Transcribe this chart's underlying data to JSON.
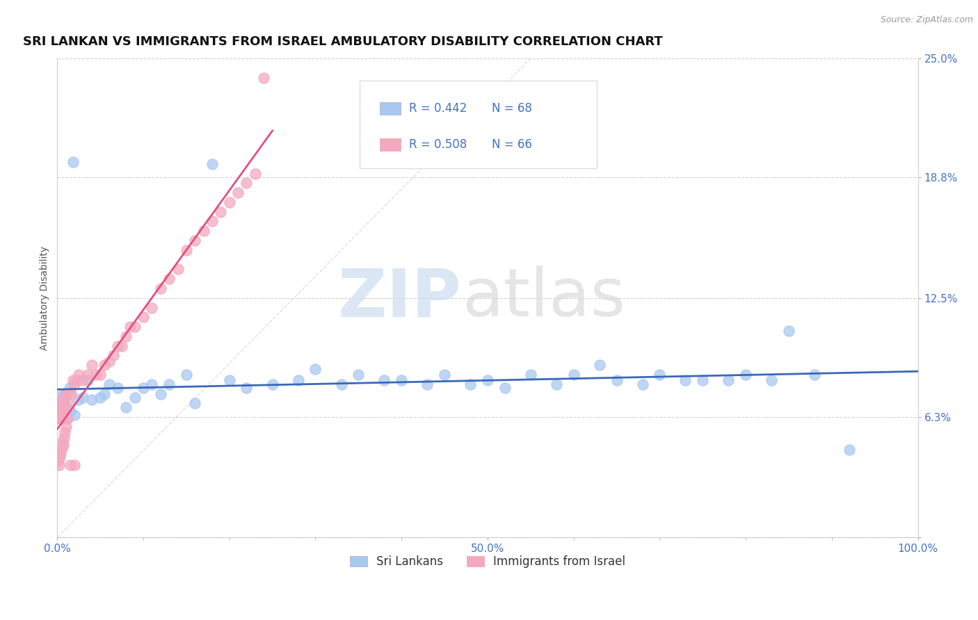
{
  "title": "SRI LANKAN VS IMMIGRANTS FROM ISRAEL AMBULATORY DISABILITY CORRELATION CHART",
  "source": "Source: ZipAtlas.com",
  "ylabel": "Ambulatory Disability",
  "xlim": [
    0,
    1.0
  ],
  "ylim": [
    0,
    0.25
  ],
  "xtick_positions": [
    0.0,
    0.5,
    1.0
  ],
  "xticklabels": [
    "0.0%",
    "50.0%",
    "100.0%"
  ],
  "ytick_positions": [
    0.0,
    0.063,
    0.125,
    0.188,
    0.25
  ],
  "yticklabels": [
    "",
    "6.3%",
    "12.5%",
    "18.8%",
    "25.0%"
  ],
  "sri_lankan_color": "#a8c8f0",
  "israel_color": "#f4a8bf",
  "sri_lankan_R": 0.442,
  "sri_lankan_N": 68,
  "israel_R": 0.508,
  "israel_N": 66,
  "blue_line_color": "#3a68b8",
  "pink_line_color": "#e05080",
  "grid_color": "#cccccc",
  "background_color": "#ffffff",
  "tick_color": "#4472c4",
  "title_fontsize": 13,
  "axis_label_fontsize": 10,
  "tick_fontsize": 11,
  "legend_fontsize": 12,
  "sl_x": [
    0.0,
    0.0,
    0.001,
    0.001,
    0.002,
    0.002,
    0.002,
    0.003,
    0.003,
    0.004,
    0.005,
    0.005,
    0.006,
    0.007,
    0.008,
    0.009,
    0.01,
    0.012,
    0.014,
    0.015,
    0.018,
    0.02,
    0.025,
    0.03,
    0.035,
    0.04,
    0.05,
    0.055,
    0.06,
    0.07,
    0.08,
    0.09,
    0.1,
    0.11,
    0.12,
    0.13,
    0.15,
    0.16,
    0.18,
    0.2,
    0.22,
    0.25,
    0.28,
    0.3,
    0.33,
    0.35,
    0.38,
    0.4,
    0.43,
    0.45,
    0.48,
    0.5,
    0.52,
    0.55,
    0.58,
    0.6,
    0.63,
    0.65,
    0.68,
    0.7,
    0.73,
    0.75,
    0.78,
    0.8,
    0.83,
    0.85,
    0.88,
    0.92
  ],
  "sl_y": [
    0.072,
    0.068,
    0.065,
    0.07,
    0.068,
    0.071,
    0.062,
    0.069,
    0.063,
    0.067,
    0.064,
    0.074,
    0.066,
    0.071,
    0.073,
    0.075,
    0.068,
    0.062,
    0.078,
    0.066,
    0.196,
    0.064,
    0.072,
    0.073,
    0.082,
    0.072,
    0.073,
    0.075,
    0.08,
    0.078,
    0.068,
    0.073,
    0.078,
    0.08,
    0.075,
    0.08,
    0.085,
    0.07,
    0.195,
    0.082,
    0.078,
    0.08,
    0.082,
    0.088,
    0.08,
    0.085,
    0.082,
    0.082,
    0.08,
    0.085,
    0.08,
    0.082,
    0.078,
    0.085,
    0.08,
    0.085,
    0.09,
    0.082,
    0.08,
    0.085,
    0.082,
    0.082,
    0.082,
    0.085,
    0.082,
    0.108,
    0.085,
    0.046
  ],
  "is_x": [
    0.0,
    0.0,
    0.0,
    0.001,
    0.001,
    0.001,
    0.002,
    0.002,
    0.003,
    0.003,
    0.004,
    0.005,
    0.005,
    0.006,
    0.007,
    0.008,
    0.009,
    0.01,
    0.012,
    0.013,
    0.015,
    0.016,
    0.018,
    0.02,
    0.022,
    0.025,
    0.03,
    0.035,
    0.04,
    0.045,
    0.05,
    0.055,
    0.06,
    0.065,
    0.07,
    0.075,
    0.08,
    0.085,
    0.09,
    0.1,
    0.11,
    0.12,
    0.13,
    0.14,
    0.15,
    0.16,
    0.17,
    0.18,
    0.19,
    0.2,
    0.21,
    0.22,
    0.23,
    0.24,
    0.001,
    0.002,
    0.003,
    0.004,
    0.005,
    0.006,
    0.007,
    0.008,
    0.009,
    0.01,
    0.015,
    0.02
  ],
  "is_y": [
    0.065,
    0.063,
    0.062,
    0.067,
    0.064,
    0.068,
    0.065,
    0.07,
    0.065,
    0.068,
    0.062,
    0.068,
    0.065,
    0.062,
    0.073,
    0.065,
    0.068,
    0.075,
    0.062,
    0.07,
    0.076,
    0.075,
    0.082,
    0.08,
    0.082,
    0.085,
    0.082,
    0.085,
    0.09,
    0.085,
    0.085,
    0.09,
    0.092,
    0.095,
    0.1,
    0.1,
    0.105,
    0.11,
    0.11,
    0.115,
    0.12,
    0.13,
    0.135,
    0.14,
    0.15,
    0.155,
    0.16,
    0.165,
    0.17,
    0.175,
    0.18,
    0.185,
    0.19,
    0.24,
    0.04,
    0.038,
    0.042,
    0.044,
    0.046,
    0.05,
    0.048,
    0.052,
    0.055,
    0.058,
    0.038,
    0.038
  ],
  "legend_label_1": "Sri Lankans",
  "legend_label_2": "Immigrants from Israel"
}
